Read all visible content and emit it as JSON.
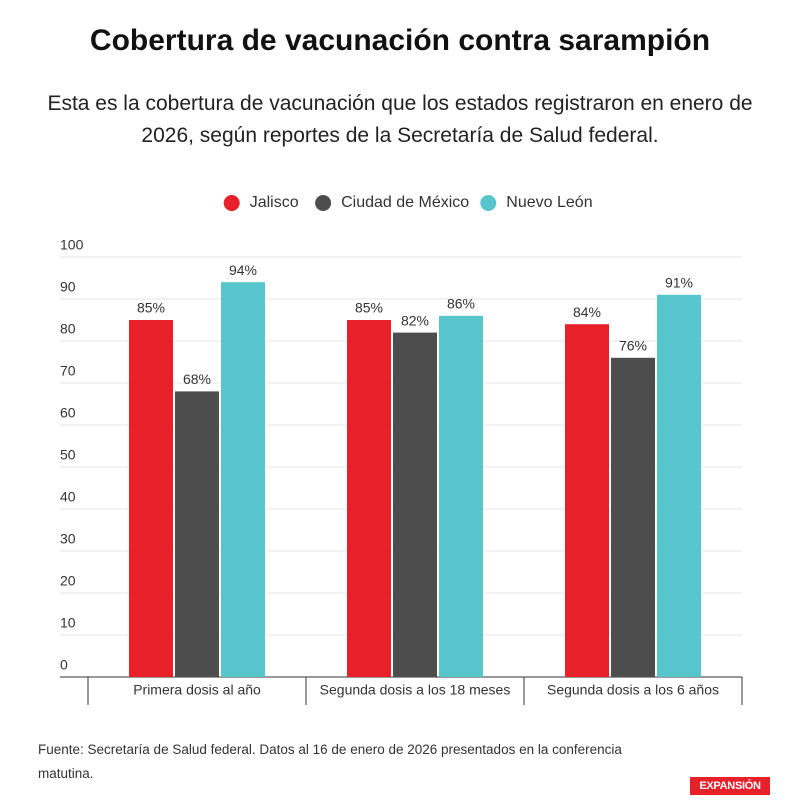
{
  "chart_data": {
    "type": "bar",
    "title": "Cobertura de vacunación contra sarampión",
    "subtitle": "Esta es la cobertura de vacunación que los estados registraron en enero de 2026, según reportes de la Secretaría de Salud federal.",
    "categories": [
      "Primera dosis al año",
      "Segunda dosis a los 18 meses",
      "Segunda dosis a los 6 años"
    ],
    "series": [
      {
        "name": "Jalisco",
        "color": "#e8202a",
        "values": [
          85,
          85,
          84
        ],
        "value_labels": [
          "85%",
          "85%",
          "84%"
        ]
      },
      {
        "name": "Ciudad de México",
        "color": "#4d4d4d",
        "values": [
          68,
          82,
          76
        ],
        "value_labels": [
          "68%",
          "82%",
          "76%"
        ]
      },
      {
        "name": "Nuevo León",
        "color": "#56c5cc",
        "values": [
          94,
          86,
          91
        ],
        "value_labels": [
          "94%",
          "86%",
          "91%"
        ]
      }
    ],
    "ylim": [
      0,
      100
    ],
    "yticks": [
      0,
      10,
      20,
      30,
      40,
      50,
      60,
      70,
      80,
      90,
      100
    ],
    "grid": true,
    "legend": "top",
    "source": "Fuente: Secretaría de Salud federal. Datos al 16 de enero de 2026 presentados en la conferencia matutina.",
    "logo": "EXPANSIÓN"
  }
}
